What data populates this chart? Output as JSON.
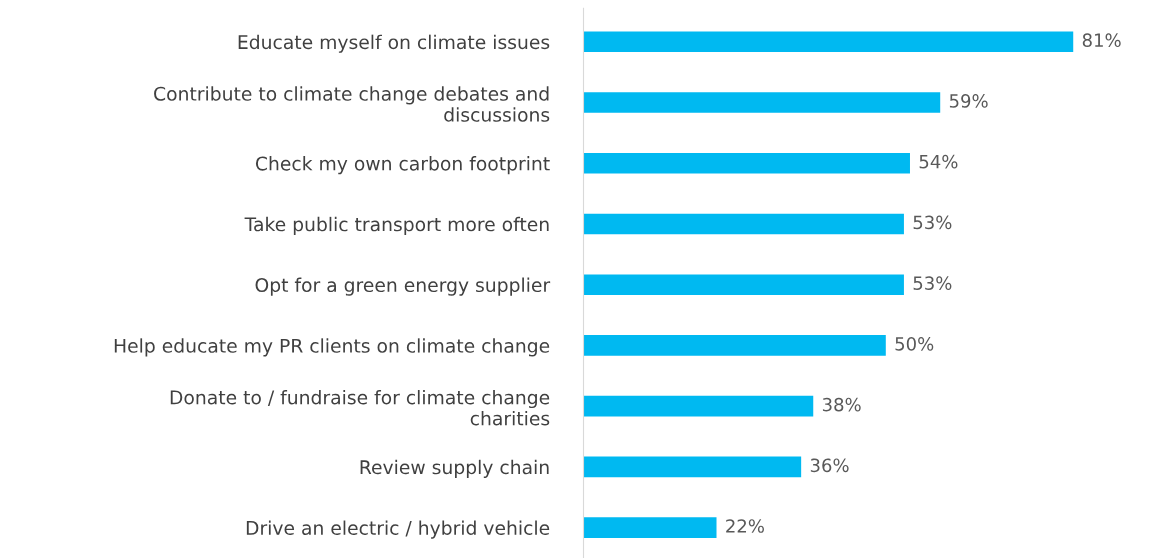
{
  "chart_data": {
    "type": "bar",
    "orientation": "horizontal",
    "categories": [
      "Educate myself on climate issues",
      "Contribute to climate change debates and\ndiscussions",
      "Check my own carbon footprint",
      "Take public transport more often",
      "Opt for a green energy supplier",
      "Help educate my PR clients on climate change",
      "Donate to / fundraise for climate change\ncharities",
      "Review supply chain",
      "Drive an electric / hybrid vehicle"
    ],
    "values": [
      81,
      59,
      54,
      53,
      53,
      50,
      38,
      36,
      22
    ],
    "value_labels": [
      "81%",
      "59%",
      "54%",
      "53%",
      "53%",
      "50%",
      "38%",
      "36%",
      "22%"
    ],
    "color": "#00b9f1",
    "tick_labels": "y",
    "grid": false,
    "legend": false
  }
}
